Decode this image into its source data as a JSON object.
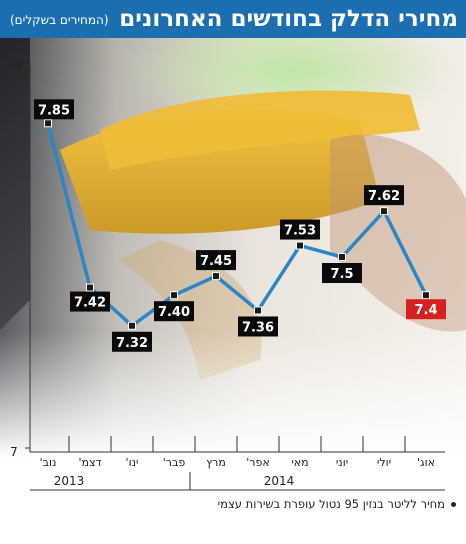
{
  "header": {
    "title": "מחירי הדלק בחודשים האחרונים",
    "subtitle": "(המחירים בשקלים)"
  },
  "caption": "מחיר לליטר בנזין 95 נטול עופרת בשירות עצמי",
  "colors": {
    "title_bar": "#1b6fb0",
    "line": "#2a86c6",
    "label_bg": "#0a0a0a",
    "label_last_bg": "#d7211f",
    "marker": "#1a1a1a"
  },
  "chart_data": {
    "type": "line",
    "title": "מחירי הדלק בחודשים האחרונים",
    "subtitle": "(המחירים בשקלים)",
    "xlabel": "",
    "ylabel": "",
    "ylim": [
      7,
      8
    ],
    "y_ticks": [
      "7",
      "8"
    ],
    "x_direction": "right-to-left",
    "categories": [
      "נוב'",
      "דצמ'",
      "ינו'",
      "פבר'",
      "מרץ",
      "אפר'",
      "מאי",
      "יוני",
      "יולי",
      "אוג'"
    ],
    "year_groups": [
      {
        "label": "2013",
        "categories": [
          "נוב'",
          "דצמ'"
        ]
      },
      {
        "label": "2014",
        "categories": [
          "ינו'",
          "פבר'",
          "מרץ",
          "אפר'",
          "מאי",
          "יוני",
          "יולי",
          "אוג'"
        ]
      }
    ],
    "series": [
      {
        "values": [
          7.85,
          7.42,
          7.32,
          7.4,
          7.45,
          7.36,
          7.53,
          7.5,
          7.62,
          7.4
        ]
      }
    ],
    "data_labels": [
      "7.85",
      "7.42",
      "7.32",
      "7.40",
      "7.45",
      "7.36",
      "7.53",
      "7.5",
      "7.62",
      "7.4"
    ],
    "grid": false,
    "legend": "none"
  }
}
